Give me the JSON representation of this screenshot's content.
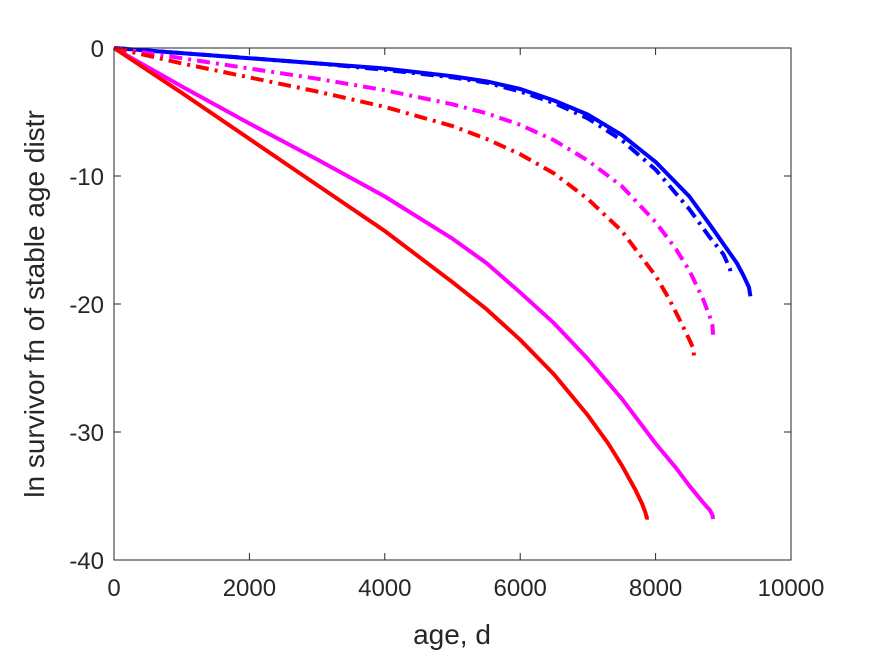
{
  "chart_data": {
    "type": "line",
    "title": "",
    "xlabel": "age, d",
    "ylabel": "ln survivor fn of stable age distr",
    "xlim": [
      0,
      10000
    ],
    "ylim": [
      -40,
      0
    ],
    "xticks": [
      0,
      2000,
      4000,
      6000,
      8000,
      10000
    ],
    "yticks": [
      -40,
      -30,
      -20,
      -10,
      0
    ],
    "xtick_labels": [
      "0",
      "2000",
      "4000",
      "6000",
      "8000",
      "10000"
    ],
    "ytick_labels": [
      "-40",
      "-30",
      "-20",
      "-10",
      "0"
    ],
    "grid": false,
    "legend": "none",
    "series": [
      {
        "color": "#0000ff",
        "dash": "solid",
        "x": [
          0,
          1000,
          2000,
          3000,
          4000,
          5000,
          5500,
          6000,
          6500,
          7000,
          7500,
          8000,
          8500,
          8800,
          9000,
          9200,
          9300,
          9380,
          9400
        ],
        "y": [
          0,
          -0.4,
          -0.8,
          -1.2,
          -1.6,
          -2.2,
          -2.6,
          -3.2,
          -4.1,
          -5.2,
          -6.8,
          -8.9,
          -11.6,
          -13.8,
          -15.3,
          -16.8,
          -17.8,
          -18.7,
          -19.4
        ]
      },
      {
        "color": "#0000ff",
        "dash": "dashdot",
        "x": [
          0,
          1000,
          2000,
          3000,
          4000,
          5000,
          5500,
          6000,
          6500,
          7000,
          7500,
          8000,
          8500,
          8800,
          9000,
          9060,
          9100,
          9110
        ],
        "y": [
          0,
          -0.4,
          -0.8,
          -1.2,
          -1.7,
          -2.3,
          -2.7,
          -3.4,
          -4.3,
          -5.5,
          -7.2,
          -9.5,
          -12.6,
          -14.8,
          -16.1,
          -16.8,
          -17.3,
          -17.8
        ]
      },
      {
        "color": "#ff00ff",
        "dash": "dashdot",
        "x": [
          0,
          1000,
          2000,
          3000,
          4000,
          5000,
          5500,
          6000,
          6500,
          7000,
          7500,
          8000,
          8300,
          8500,
          8700,
          8800,
          8840,
          8850
        ],
        "y": [
          0,
          -0.8,
          -1.6,
          -2.4,
          -3.3,
          -4.4,
          -5.1,
          -6.0,
          -7.2,
          -8.8,
          -10.8,
          -13.6,
          -15.7,
          -17.4,
          -19.6,
          -21.0,
          -21.7,
          -22.4
        ]
      },
      {
        "color": "#ff0000",
        "dash": "dashdot",
        "x": [
          0,
          1000,
          2000,
          3000,
          4000,
          5000,
          5500,
          6000,
          6500,
          7000,
          7500,
          8000,
          8200,
          8400,
          8500,
          8560,
          8570
        ],
        "y": [
          0,
          -1.2,
          -2.3,
          -3.4,
          -4.6,
          -6.1,
          -7.1,
          -8.3,
          -9.8,
          -11.8,
          -14.3,
          -17.8,
          -19.6,
          -21.7,
          -22.8,
          -23.5,
          -24.4
        ]
      },
      {
        "color": "#ff00ff",
        "dash": "solid",
        "x": [
          0,
          1000,
          2000,
          3000,
          4000,
          5000,
          5500,
          6000,
          6500,
          7000,
          7500,
          8000,
          8300,
          8500,
          8700,
          8800,
          8840,
          8850
        ],
        "y": [
          0,
          -3.0,
          -5.9,
          -8.7,
          -11.6,
          -14.9,
          -16.8,
          -19.1,
          -21.5,
          -24.3,
          -27.4,
          -30.9,
          -32.8,
          -34.2,
          -35.5,
          -36.1,
          -36.5,
          -36.8
        ]
      },
      {
        "color": "#ff0000",
        "dash": "solid",
        "x": [
          0,
          1000,
          2000,
          3000,
          4000,
          5000,
          5500,
          6000,
          6500,
          7000,
          7300,
          7500,
          7700,
          7800,
          7850,
          7870,
          7900
        ],
        "y": [
          0,
          -3.5,
          -7.1,
          -10.7,
          -14.3,
          -18.3,
          -20.4,
          -22.8,
          -25.5,
          -28.7,
          -30.9,
          -32.6,
          -34.5,
          -35.6,
          -36.3,
          -36.7,
          -36.7
        ]
      }
    ]
  }
}
